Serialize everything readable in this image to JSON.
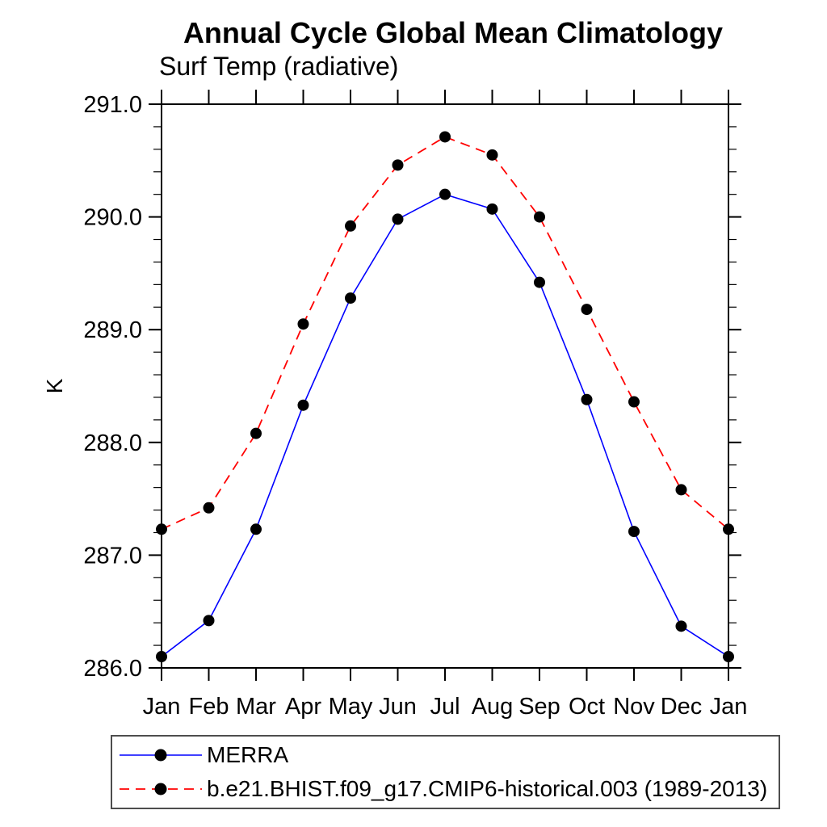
{
  "header": {
    "title": "Annual Cycle Global Mean Climatology",
    "subtitle": "Surf Temp (radiative)"
  },
  "chart_data": {
    "type": "line",
    "title": "Annual Cycle Global Mean Climatology",
    "subtitle": "Surf Temp (radiative)",
    "xlabel": "",
    "ylabel": "K",
    "ylim": [
      286.0,
      291.0
    ],
    "ytick_major_interval": 1.0,
    "ytick_minor_interval": 0.2,
    "ytick_labels": [
      "291.0",
      "290.0",
      "289.0",
      "288.0",
      "287.0",
      "286.0"
    ],
    "categories": [
      "Jan",
      "Feb",
      "Mar",
      "Apr",
      "May",
      "Jun",
      "Jul",
      "Aug",
      "Sep",
      "Oct",
      "Nov",
      "Dec",
      "Jan"
    ],
    "grid": false,
    "legend_position": "bottom-left-box",
    "axis_color": "#000000",
    "marker_color": "#000000",
    "series": [
      {
        "name": "MERRA",
        "color": "#0000ff",
        "line_style": "solid",
        "marker": "filled-circle",
        "values": [
          286.1,
          286.42,
          287.23,
          288.33,
          289.28,
          289.98,
          290.2,
          290.07,
          289.42,
          288.38,
          287.21,
          286.37,
          286.1
        ]
      },
      {
        "name": "b.e21.BHIST.f09_g17.CMIP6-historical.003 (1989-2013)",
        "color": "#ff0000",
        "line_style": "dashed",
        "marker": "filled-circle",
        "values": [
          287.23,
          287.42,
          288.08,
          289.05,
          289.92,
          290.46,
          290.71,
          290.55,
          290.0,
          289.18,
          288.36,
          287.58,
          287.23
        ]
      }
    ]
  }
}
